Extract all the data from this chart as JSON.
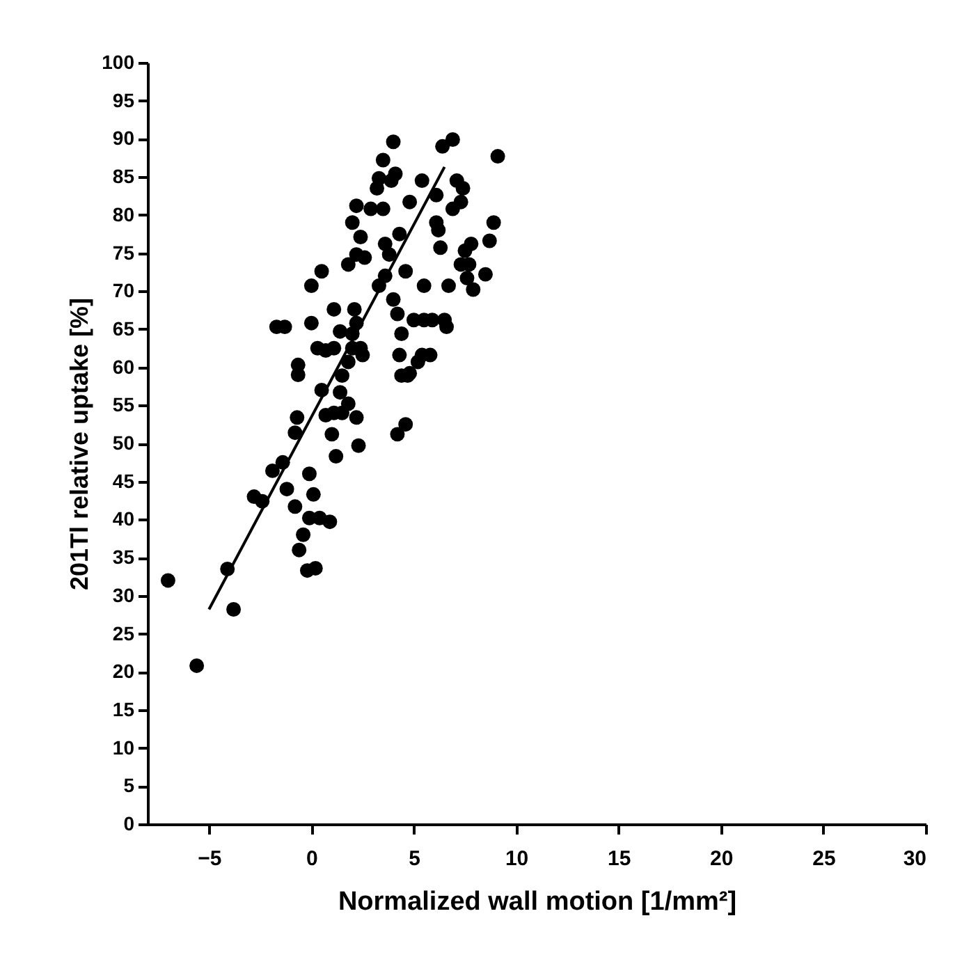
{
  "chart_data": {
    "type": "scatter",
    "xlabel": "Normalized wall motion [1/mm²]",
    "ylabel": "201Tl relative uptake [%]",
    "xlim": [
      -8,
      30
    ],
    "ylim": [
      0,
      100
    ],
    "xticks": [
      -5,
      0,
      5,
      10,
      15,
      20,
      25,
      30
    ],
    "yticks": [
      0,
      5,
      10,
      15,
      20,
      25,
      30,
      35,
      40,
      45,
      50,
      55,
      60,
      65,
      70,
      75,
      80,
      85,
      90,
      95,
      100
    ],
    "grid": false,
    "series": [
      {
        "type": "scatter",
        "marker": "circle",
        "color": "#000000",
        "x": [
          -7.0,
          -5.6,
          -4.1,
          -3.8,
          -2.8,
          -2.4,
          -1.9,
          -1.4,
          -1.7,
          -1.3,
          -1.2,
          -0.8,
          -0.7,
          -0.65,
          -0.65,
          -0.8,
          -0.6,
          -0.4,
          -0.2,
          0.2,
          -0.1,
          0.1,
          -0.1,
          0.4,
          0.9,
          0.0,
          0.0,
          0.5,
          0.3,
          0.7,
          1.1,
          0.5,
          0.7,
          1.1,
          1.5,
          1.0,
          1.2,
          1.4,
          1.4,
          1.1,
          1.5,
          1.8,
          1.8,
          2.0,
          2.0,
          2.2,
          2.1,
          1.8,
          2.0,
          2.2,
          2.2,
          2.4,
          2.2,
          2.3,
          2.4,
          2.5,
          2.6,
          2.9,
          3.2,
          3.3,
          3.5,
          3.5,
          3.6,
          3.6,
          3.3,
          3.8,
          3.9,
          4.0,
          4.1,
          4.0,
          4.2,
          4.4,
          4.3,
          4.4,
          4.2,
          4.6,
          4.7,
          4.8,
          4.3,
          4.6,
          4.8,
          5.0,
          5.2,
          5.4,
          5.5,
          5.4,
          5.5,
          5.8,
          5.9,
          6.1,
          6.1,
          6.2,
          6.3,
          6.5,
          6.4,
          6.6,
          6.9,
          6.7,
          6.9,
          7.1,
          7.3,
          7.3,
          7.5,
          7.6,
          7.4,
          7.7,
          7.8,
          8.5,
          8.7,
          8.9,
          9.1,
          7.9
        ],
        "values": [
          32,
          20.8,
          33.5,
          28.2,
          43,
          42.4,
          46.4,
          47.5,
          65.3,
          65.3,
          44,
          41.7,
          53.4,
          59,
          60.3,
          51.4,
          36,
          38,
          33.3,
          33.6,
          46,
          43.3,
          40.2,
          40.2,
          39.7,
          65.8,
          70.7,
          72.6,
          62.5,
          62.2,
          62.5,
          57,
          53.7,
          54,
          54,
          51.2,
          48.3,
          56.7,
          64.7,
          67.6,
          58.9,
          60.7,
          55.2,
          62.5,
          64.4,
          65.8,
          67.6,
          73.5,
          79,
          81.2,
          74.8,
          77.1,
          53.4,
          49.7,
          62.5,
          61.6,
          74.4,
          80.8,
          83.5,
          84.8,
          87.2,
          80.8,
          76.2,
          72,
          70.7,
          74.8,
          84.5,
          89.6,
          85.4,
          68.9,
          67,
          64.4,
          61.6,
          58.9,
          51.2,
          52.5,
          58.9,
          59.2,
          77.5,
          72.6,
          81.7,
          66.2,
          60.7,
          61.6,
          66.2,
          84.5,
          70.7,
          61.6,
          66.2,
          82.6,
          79,
          78,
          75.7,
          66.2,
          89,
          65.3,
          89.9,
          70.7,
          80.8,
          84.5,
          81.7,
          73.5,
          75.3,
          71.7,
          83.5,
          73.5,
          76.2,
          72.2,
          76.6,
          79,
          87.7,
          70.2
        ]
      },
      {
        "type": "line",
        "marker": "none",
        "color": "#000000",
        "x": [
          -5.0,
          6.5
        ],
        "values": [
          28.2,
          86.3
        ]
      }
    ]
  }
}
